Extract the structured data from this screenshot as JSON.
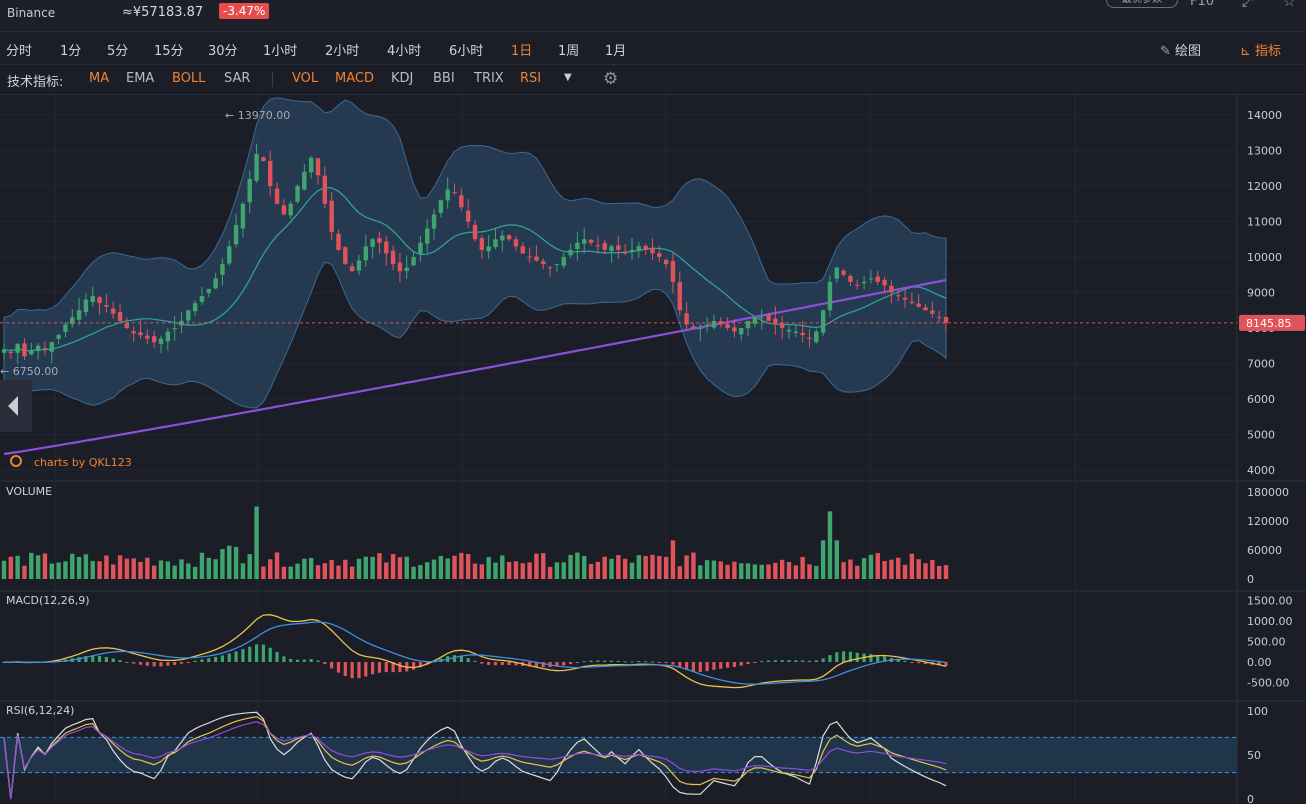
{
  "header": {
    "exchange": "Binance",
    "price": "≈¥57183.87",
    "change": "-3.47%",
    "opt_button": "最优参数",
    "f10": "F10"
  },
  "periods": [
    {
      "label": "分时",
      "active": false
    },
    {
      "label": "1分",
      "active": false
    },
    {
      "label": "5分",
      "active": false
    },
    {
      "label": "15分",
      "active": false
    },
    {
      "label": "30分",
      "active": false
    },
    {
      "label": "1小时",
      "active": false
    },
    {
      "label": "2小时",
      "active": false
    },
    {
      "label": "4小时",
      "active": false
    },
    {
      "label": "6小时",
      "active": false
    },
    {
      "label": "1日",
      "active": true
    },
    {
      "label": "1周",
      "active": false
    },
    {
      "label": "1月",
      "active": false
    }
  ],
  "tools": {
    "draw": "绘图",
    "indicator": "指标"
  },
  "indicators": {
    "label": "技术指标:",
    "main": [
      {
        "label": "MA",
        "on": true
      },
      {
        "label": "EMA",
        "on": false
      },
      {
        "label": "BOLL",
        "on": true
      },
      {
        "label": "SAR",
        "on": false
      }
    ],
    "sub": [
      {
        "label": "VOL",
        "on": true
      },
      {
        "label": "MACD",
        "on": true
      },
      {
        "label": "KDJ",
        "on": false
      },
      {
        "label": "BBI",
        "on": false
      },
      {
        "label": "TRIX",
        "on": false
      },
      {
        "label": "RSI",
        "on": true
      }
    ]
  },
  "main_chart": {
    "y_ticks": [
      "14000",
      "13000",
      "12000",
      "11000",
      "10000",
      "9000",
      "8000",
      "7000",
      "6000",
      "5000",
      "4000"
    ],
    "high_label": "13970.00",
    "low_label": "6750.00",
    "last_price": "8145.85",
    "watermark": "charts by QKL123",
    "colors": {
      "up": "#3fa56d",
      "down": "#e0535b",
      "boll_band": "#2a4460",
      "boll_mid": "#2fa89a",
      "ma_long": "#8d4fdc",
      "price_line": "#e0535b"
    }
  },
  "volume_panel": {
    "title": "VOLUME",
    "y_ticks": [
      "180000",
      "120000",
      "60000",
      "0"
    ]
  },
  "macd_panel": {
    "title": "MACD(12,26,9)",
    "y_ticks": [
      "1500.00",
      "1000.00",
      "500.00",
      "0.00",
      "-500.00"
    ],
    "colors": {
      "dif": "#e8c24a",
      "dea": "#3d8fe0"
    }
  },
  "rsi_panel": {
    "title": "RSI(6,12,24)",
    "y_ticks": [
      "100",
      "50",
      "0"
    ],
    "colors": {
      "rsi6": "#dcdcdc",
      "rsi12": "#e8c24a",
      "rsi24": "#8d4fdc"
    }
  },
  "chart_data": {
    "type": "candlestick",
    "title": "",
    "ylim": [
      4000,
      14000
    ],
    "close_series": [
      7400,
      7300,
      7550,
      7200,
      7350,
      7500,
      7400,
      7600,
      7800,
      8100,
      8300,
      8500,
      8800,
      8900,
      8700,
      8600,
      8400,
      8200,
      8000,
      7850,
      7800,
      7700,
      7600,
      7700,
      7900,
      8000,
      8200,
      8500,
      8700,
      8900,
      9100,
      9400,
      9800,
      10300,
      10900,
      11500,
      12200,
      12900,
      12700,
      12000,
      11500,
      11200,
      11500,
      12000,
      12400,
      12800,
      12300,
      11500,
      10700,
      10200,
      9800,
      9600,
      9900,
      10300,
      10500,
      10400,
      10100,
      9800,
      9600,
      9700,
      10000,
      10400,
      10800,
      11200,
      11600,
      11900,
      11800,
      11400,
      11000,
      10500,
      10200,
      10300,
      10500,
      10600,
      10500,
      10300,
      10100,
      10000,
      9900,
      9800,
      9700,
      9800,
      10000,
      10200,
      10400,
      10500,
      10400,
      10300,
      10200,
      10300,
      10200,
      10100,
      10200,
      10300,
      10200,
      10100,
      10000,
      9800,
      9300,
      8500,
      8100,
      8000,
      8000,
      8100,
      8200,
      8100,
      8000,
      7900,
      8000,
      8200,
      8300,
      8300,
      8200,
      8100,
      8000,
      7950,
      7900,
      7800,
      7700,
      7900,
      8500,
      9300,
      9700,
      9500,
      9300,
      9200,
      9300,
      9400,
      9300,
      9200,
      9000,
      8900,
      8800,
      8700,
      8600,
      8500,
      8400,
      8300,
      8145.85
    ]
  }
}
